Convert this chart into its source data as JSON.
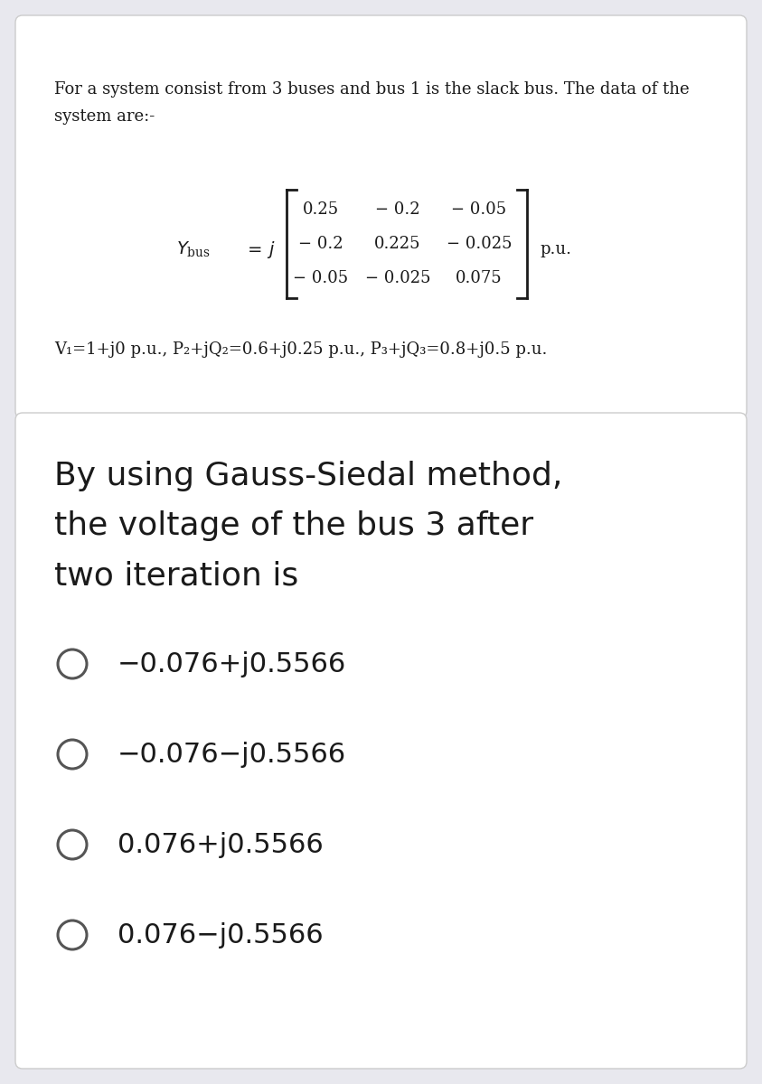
{
  "bg_color": "#e8e8ee",
  "card1_color": "#ffffff",
  "card2_color": "#ffffff",
  "intro_text_line1": "For a system consist from 3 buses and bus 1 is the slack bus. The data of the",
  "intro_text_line2": "system are:-",
  "matrix_rows": [
    [
      "0.25",
      "− 0.2",
      "− 0.05"
    ],
    [
      "− 0.2",
      "0.225",
      "− 0.025"
    ],
    [
      "− 0.05",
      "− 0.025",
      "0.075"
    ]
  ],
  "matrix_unit": "p.u.",
  "params_text": "V₁=1+j0 p.u., P₂+jQ₂=0.6+j0.25 p.u., P₃+jQ₃=0.8+j0.5 p.u.",
  "question_lines": [
    "By using Gauss-Siedal method,",
    "the voltage of the bus 3 after",
    "two iteration is"
  ],
  "options": [
    "−0.076+j0.5566",
    "−0.076−j0.5566",
    "0.076+j0.5566",
    "0.076−j0.5566"
  ],
  "intro_fontsize": 13,
  "matrix_fontsize": 13,
  "params_fontsize": 13,
  "question_fontsize": 26,
  "option_fontsize": 22,
  "text_color": "#1a1a1a",
  "circle_color": "#555555",
  "card_edge_color": "#cccccc"
}
